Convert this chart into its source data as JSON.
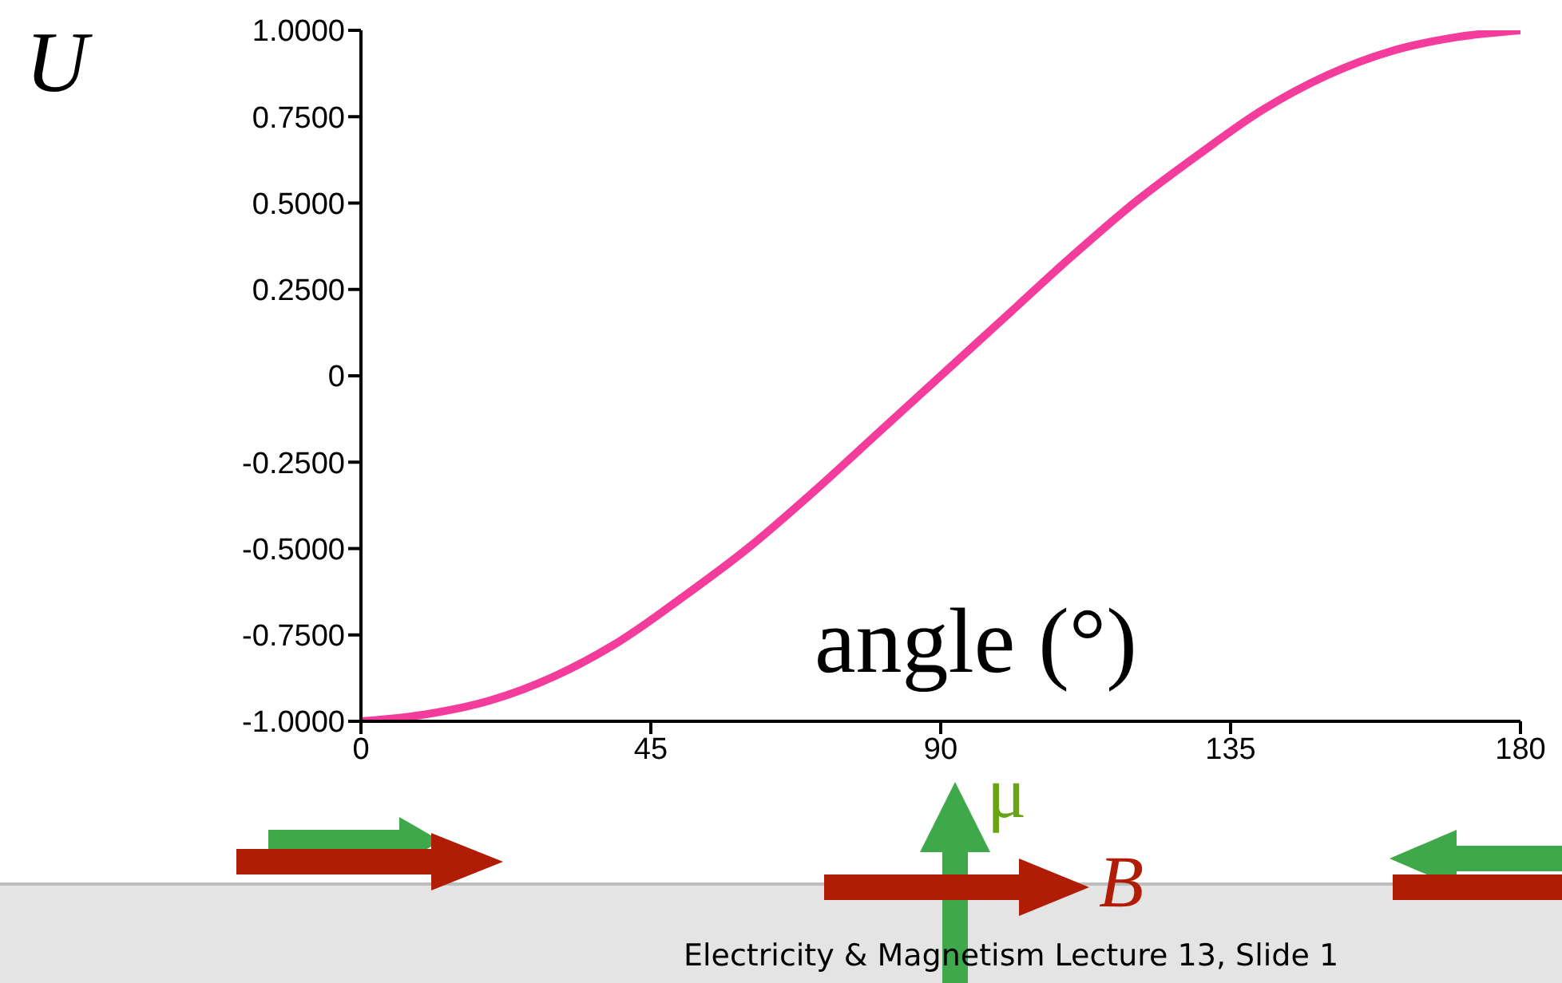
{
  "chart_data": {
    "type": "line",
    "xlabel": "angle (°)",
    "ylabel": "U",
    "x": [
      0,
      10,
      20,
      30,
      40,
      50,
      60,
      70,
      80,
      90,
      100,
      110,
      120,
      130,
      140,
      150,
      160,
      170,
      180
    ],
    "series": [
      {
        "color": "#f43c9c",
        "values": [
          -1,
          -0.98,
          -0.94,
          -0.87,
          -0.77,
          -0.64,
          -0.5,
          -0.34,
          -0.17,
          0,
          0.17,
          0.34,
          0.5,
          0.64,
          0.77,
          0.87,
          0.94,
          0.98,
          1
        ]
      }
    ],
    "xlim": [
      0,
      180
    ],
    "xticks": [
      0,
      45,
      90,
      135,
      180
    ],
    "ylim": [
      -1,
      1
    ],
    "yticks": [
      {
        "value": -1,
        "label": "-1.0000"
      },
      {
        "value": -0.75,
        "label": "-0.7500"
      },
      {
        "value": -0.5,
        "label": "-0.5000"
      },
      {
        "value": -0.25,
        "label": "-0.2500"
      },
      0,
      {
        "value": 0.25,
        "label": "0.2500"
      },
      {
        "value": 0.5,
        "label": "0.5000"
      },
      {
        "value": 0.75,
        "label": "0.7500"
      },
      {
        "value": 1,
        "label": "1.0000"
      }
    ],
    "grid": false,
    "legend": false,
    "marker": "none",
    "line_style": "solid",
    "annotations": [
      "μ",
      "B",
      "Electricity & Magnetism  Lecture 13, Slide 1"
    ]
  }
}
